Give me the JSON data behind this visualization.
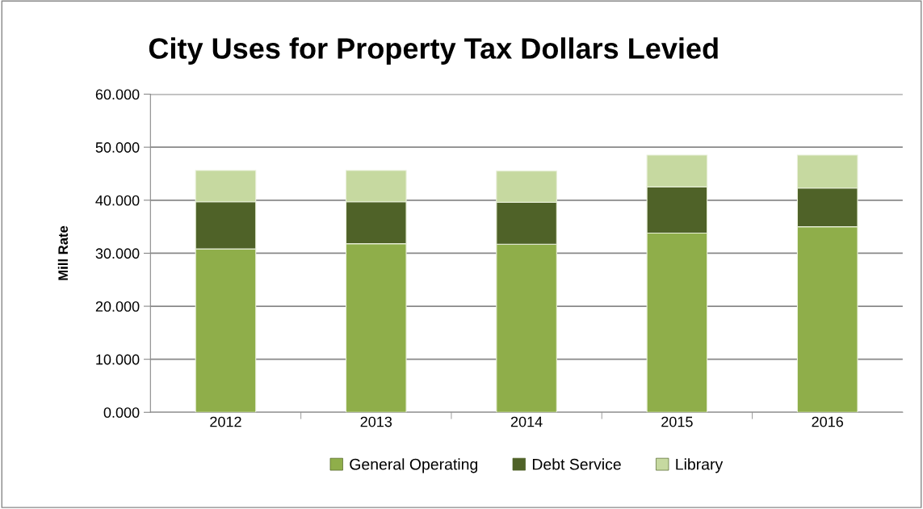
{
  "chart_data": {
    "type": "bar",
    "title": "City Uses for Property Tax Dollars Levied",
    "ylabel": "Mill Rate",
    "categories": [
      "2012",
      "2013",
      "2014",
      "2015",
      "2016"
    ],
    "stacked": true,
    "series": [
      {
        "name": "General Operating",
        "color": "#8fae4a",
        "values": [
          30.8,
          31.8,
          31.7,
          33.8,
          35.0
        ]
      },
      {
        "name": "Debt Service",
        "color": "#4f6228",
        "values": [
          8.9,
          7.9,
          7.9,
          8.7,
          7.3
        ]
      },
      {
        "name": "Library",
        "color": "#c6d9a0",
        "values": [
          5.9,
          5.9,
          5.9,
          6.0,
          6.2
        ]
      }
    ],
    "ylim": [
      0,
      60
    ],
    "yticks": [
      {
        "value": 0,
        "label": "0.000"
      },
      {
        "value": 10,
        "label": "10.000"
      },
      {
        "value": 20,
        "label": "20.000"
      },
      {
        "value": 30,
        "label": "30.000"
      },
      {
        "value": 40,
        "label": "40.000"
      },
      {
        "value": 50,
        "label": "50.000"
      },
      {
        "value": 60,
        "label": "60.000"
      }
    ],
    "grid": "y",
    "legend": "bottom"
  }
}
